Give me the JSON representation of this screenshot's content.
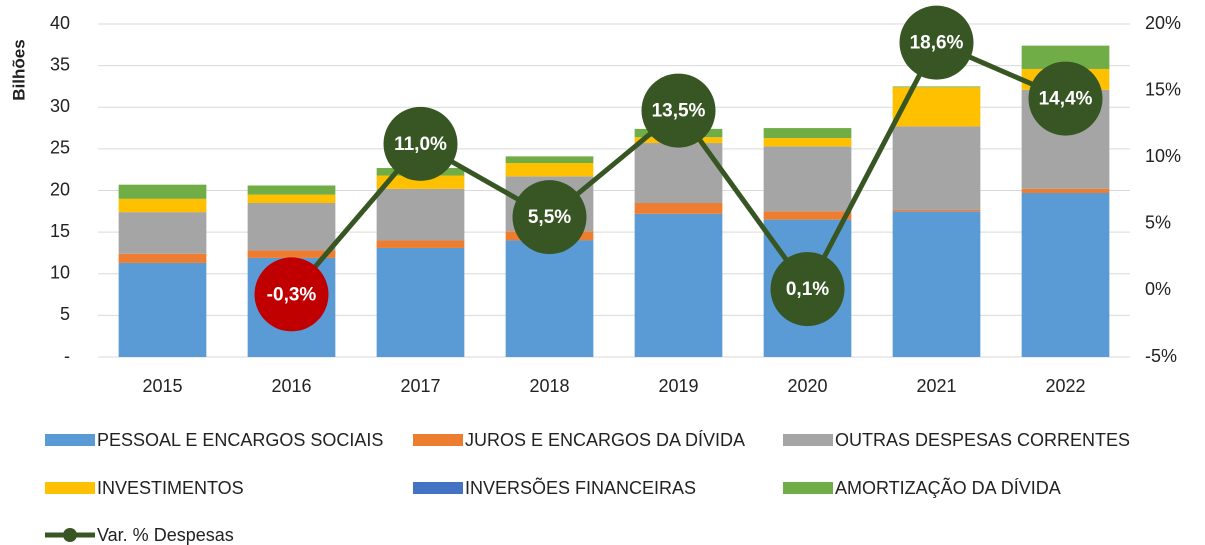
{
  "chart_data": {
    "type": "bar",
    "y_label": "Bilhões",
    "categories": [
      "2015",
      "2016",
      "2017",
      "2018",
      "2019",
      "2020",
      "2021",
      "2022"
    ],
    "stacked": true,
    "series": [
      {
        "name": "PESSOAL E ENCARGOS SOCIAIS",
        "color": "#5b9bd5",
        "values": [
          11.3,
          11.9,
          13.1,
          14.0,
          17.2,
          16.5,
          17.5,
          19.7
        ]
      },
      {
        "name": "JUROS E ENCARGOS DA DÍVIDA",
        "color": "#ed7d31",
        "values": [
          1.1,
          0.9,
          0.9,
          1.1,
          1.3,
          1.0,
          0.2,
          0.5
        ]
      },
      {
        "name": "OUTRAS DESPESAS CORRENTES",
        "color": "#a5a5a5",
        "values": [
          5.0,
          5.7,
          6.2,
          6.6,
          7.2,
          7.8,
          10.0,
          11.9
        ]
      },
      {
        "name": "INVESTIMENTOS",
        "color": "#ffc000",
        "values": [
          1.6,
          1.0,
          1.6,
          1.6,
          0.7,
          1.0,
          4.7,
          2.5
        ]
      },
      {
        "name": "INVERSÕES FINANCEIRAS",
        "color": "#4472c4",
        "values": [
          0,
          0,
          0,
          0,
          0,
          0,
          0,
          0
        ]
      },
      {
        "name": "AMORTIZAÇÃO DA DÍVIDA",
        "color": "#70ad47",
        "values": [
          1.7,
          1.1,
          0.9,
          0.8,
          1.0,
          1.2,
          0.1,
          2.8
        ]
      },
      {
        "name": "Var. % Despesas",
        "type": "line",
        "axis": "y2",
        "color": "#375623",
        "negative_color": "#c00000",
        "values": [
          null,
          -0.3,
          11.0,
          5.5,
          13.5,
          0.1,
          18.6,
          14.4
        ],
        "value_labels": [
          null,
          "-0,3%",
          "11,0%",
          "5,5%",
          "13,5%",
          "0,1%",
          "18,6%",
          "14,4%"
        ]
      }
    ],
    "ylim": [
      0,
      40
    ],
    "yticks": [
      {
        "value": 0,
        "label": "-"
      },
      5,
      10,
      15,
      20,
      25,
      30,
      35,
      40
    ],
    "y2lim": [
      -5,
      20
    ],
    "y2ticks": [
      {
        "value": -5,
        "label": "-5%"
      },
      {
        "value": 0,
        "label": "0%"
      },
      {
        "value": 5,
        "label": "5%"
      },
      {
        "value": 10,
        "label": "10%"
      },
      {
        "value": 15,
        "label": "15%"
      },
      {
        "value": 20,
        "label": "20%"
      }
    ],
    "grid": true,
    "legend": "bottom"
  }
}
